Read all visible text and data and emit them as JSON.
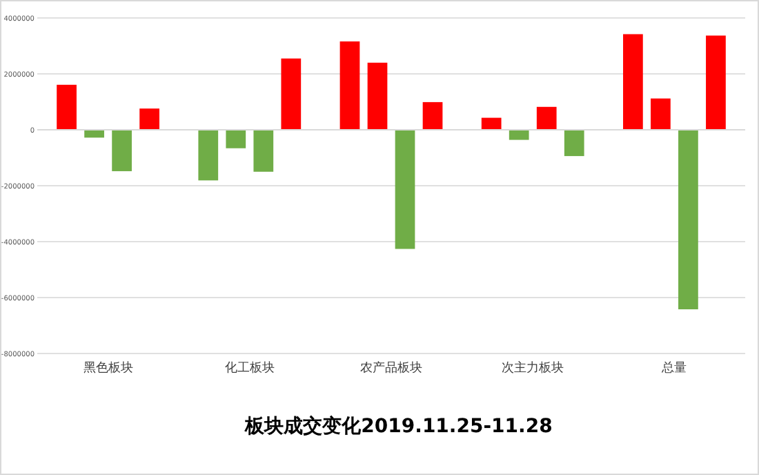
{
  "chart_data": {
    "type": "bar",
    "title": "板块成交变化2019.11.25-11.28",
    "categories": [
      "黑色板块",
      "化工板块",
      "农产品板块",
      "次主力板块",
      "总量"
    ],
    "series": [
      {
        "colors": [
          "#ff0000",
          "#70ad47",
          "#ff0000",
          "#ff0000",
          "#ff0000"
        ],
        "values": [
          1610000,
          -1810000,
          3160000,
          430000,
          3420000
        ]
      },
      {
        "colors": [
          "#70ad47",
          "#70ad47",
          "#ff0000",
          "#70ad47",
          "#ff0000"
        ],
        "values": [
          -280000,
          -660000,
          2400000,
          -360000,
          1120000
        ]
      },
      {
        "colors": [
          "#70ad47",
          "#70ad47",
          "#70ad47",
          "#ff0000",
          "#70ad47"
        ],
        "values": [
          -1480000,
          -1500000,
          -4260000,
          820000,
          -6420000
        ]
      },
      {
        "colors": [
          "#ff0000",
          "#ff0000",
          "#ff0000",
          "#70ad47",
          "#ff0000"
        ],
        "values": [
          760000,
          2550000,
          990000,
          -940000,
          3370000
        ]
      }
    ],
    "ylim": [
      -8000000,
      4000000
    ],
    "yticks": [
      -8000000,
      -6000000,
      -4000000,
      -2000000,
      0,
      2000000,
      4000000
    ],
    "grid": "y"
  }
}
